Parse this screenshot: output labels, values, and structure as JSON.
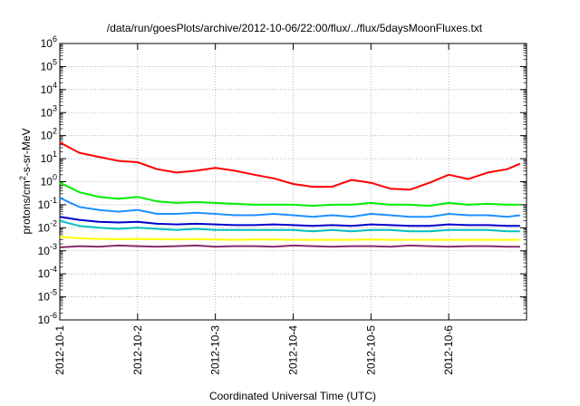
{
  "chart_data": {
    "type": "line",
    "title": "/data/run/goesPlots/archive/2012-10-06/22:00/flux/../flux/5daysMoonFluxes.txt",
    "xlabel": "Coordinated Universal Time (UTC)",
    "ylabel": "protons/cm²-s-sr-MeV",
    "y_scale": "log",
    "ylim": [
      1e-06,
      1000000.0
    ],
    "y_ticks": [
      {
        "value": 1e-06,
        "base": "10",
        "exp": "-6"
      },
      {
        "value": 1e-05,
        "base": "10",
        "exp": "-5"
      },
      {
        "value": 0.0001,
        "base": "10",
        "exp": "-4"
      },
      {
        "value": 0.001,
        "base": "10",
        "exp": "-3"
      },
      {
        "value": 0.01,
        "base": "10",
        "exp": "-2"
      },
      {
        "value": 0.1,
        "base": "10",
        "exp": "-1"
      },
      {
        "value": 1,
        "base": "10",
        "exp": "0"
      },
      {
        "value": 10,
        "base": "10",
        "exp": "1"
      },
      {
        "value": 100,
        "base": "10",
        "exp": "2"
      },
      {
        "value": 1000,
        "base": "10",
        "exp": "3"
      },
      {
        "value": 10000,
        "base": "10",
        "exp": "4"
      },
      {
        "value": 100000,
        "base": "10",
        "exp": "5"
      },
      {
        "value": 1000000,
        "base": "10",
        "exp": "6"
      }
    ],
    "xlim": [
      "2012-10-01",
      "2012-10-07"
    ],
    "x_ticks": [
      "2012-10-1",
      "2012-10-2",
      "2012-10-3",
      "2012-10-4",
      "2012-10-5",
      "2012-10-6"
    ],
    "grid": true,
    "x": [
      "2012-10-01 00:00",
      "2012-10-01 06:00",
      "2012-10-01 12:00",
      "2012-10-01 18:00",
      "2012-10-02 00:00",
      "2012-10-02 06:00",
      "2012-10-02 12:00",
      "2012-10-02 18:00",
      "2012-10-03 00:00",
      "2012-10-03 06:00",
      "2012-10-03 12:00",
      "2012-10-03 18:00",
      "2012-10-04 00:00",
      "2012-10-04 06:00",
      "2012-10-04 12:00",
      "2012-10-04 18:00",
      "2012-10-05 00:00",
      "2012-10-05 06:00",
      "2012-10-05 12:00",
      "2012-10-05 18:00",
      "2012-10-06 00:00",
      "2012-10-06 06:00",
      "2012-10-06 12:00",
      "2012-10-06 18:00",
      "2012-10-06 22:00"
    ],
    "series": [
      {
        "color": "#ff0000",
        "values": [
          50,
          18,
          12,
          8,
          7,
          3.5,
          2.5,
          3,
          4,
          3,
          2,
          1.4,
          0.8,
          0.6,
          0.6,
          1.2,
          0.9,
          0.5,
          0.45,
          0.9,
          2,
          1.3,
          2.5,
          3.5,
          6
        ]
      },
      {
        "color": "#00ee00",
        "values": [
          0.9,
          0.35,
          0.22,
          0.18,
          0.22,
          0.14,
          0.12,
          0.13,
          0.12,
          0.11,
          0.1,
          0.1,
          0.1,
          0.09,
          0.1,
          0.1,
          0.12,
          0.1,
          0.1,
          0.09,
          0.12,
          0.1,
          0.11,
          0.1,
          0.1
        ]
      },
      {
        "color": "#1e90ff",
        "values": [
          0.2,
          0.08,
          0.06,
          0.05,
          0.06,
          0.04,
          0.04,
          0.045,
          0.04,
          0.035,
          0.035,
          0.04,
          0.035,
          0.03,
          0.035,
          0.03,
          0.04,
          0.035,
          0.03,
          0.03,
          0.04,
          0.035,
          0.035,
          0.03,
          0.035
        ]
      },
      {
        "color": "#0000cc",
        "values": [
          0.03,
          0.022,
          0.018,
          0.017,
          0.018,
          0.015,
          0.014,
          0.015,
          0.014,
          0.013,
          0.013,
          0.014,
          0.013,
          0.012,
          0.013,
          0.012,
          0.014,
          0.013,
          0.012,
          0.012,
          0.014,
          0.013,
          0.013,
          0.012,
          0.012
        ]
      },
      {
        "color": "#00bfbf",
        "values": [
          0.02,
          0.012,
          0.01,
          0.009,
          0.01,
          0.009,
          0.008,
          0.009,
          0.008,
          0.008,
          0.008,
          0.008,
          0.008,
          0.007,
          0.008,
          0.007,
          0.008,
          0.008,
          0.007,
          0.007,
          0.008,
          0.008,
          0.008,
          0.007,
          0.007
        ]
      },
      {
        "color": "#ffff00",
        "values": [
          0.004,
          0.0035,
          0.0033,
          0.0032,
          0.0033,
          0.0032,
          0.0031,
          0.0032,
          0.0031,
          0.003,
          0.0031,
          0.0031,
          0.003,
          0.003,
          0.003,
          0.003,
          0.0031,
          0.003,
          0.003,
          0.003,
          0.003,
          0.003,
          0.003,
          0.003,
          0.003
        ]
      },
      {
        "color": "#8b2a6b",
        "values": [
          0.0014,
          0.0016,
          0.0015,
          0.0017,
          0.0016,
          0.0015,
          0.0016,
          0.0017,
          0.0015,
          0.0016,
          0.0016,
          0.0015,
          0.0017,
          0.0016,
          0.0015,
          0.0016,
          0.0016,
          0.0015,
          0.0017,
          0.0016,
          0.0015,
          0.0016,
          0.0016,
          0.0015,
          0.0015
        ]
      }
    ]
  }
}
